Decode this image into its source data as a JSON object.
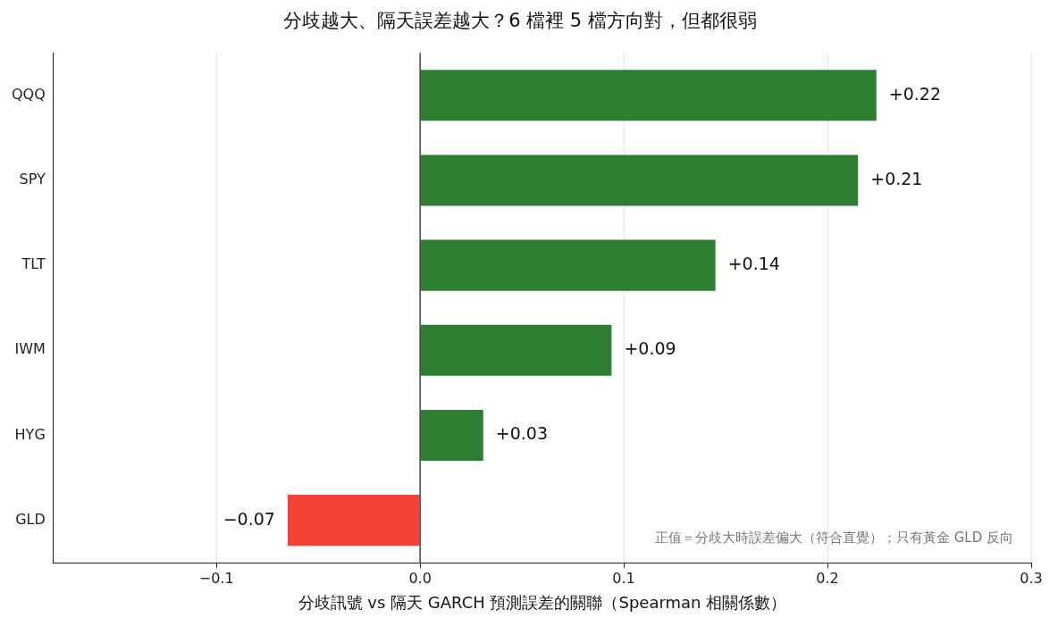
{
  "chart_data": {
    "type": "bar",
    "orientation": "horizontal",
    "title": "分歧越大、隔天誤差越大？6 檔裡 5 檔方向對，但都很弱",
    "xlabel": "分歧訊號 vs 隔天 GARCH 預測誤差的關聯（Spearman 相關係數）",
    "categories": [
      "QQQ",
      "SPY",
      "TLT",
      "IWM",
      "HYG",
      "GLD"
    ],
    "values": [
      0.224,
      0.215,
      0.145,
      0.094,
      0.031,
      -0.065
    ],
    "colors": [
      "#2e7d32",
      "#2e7d32",
      "#2e7d32",
      "#2e7d32",
      "#2e7d32",
      "#f44336"
    ],
    "value_labels": [
      "+0.22",
      "+0.21",
      "+0.14",
      "+0.09",
      "+0.03",
      "−0.07"
    ],
    "xlim": [
      -0.18,
      0.3
    ],
    "xticks": [
      {
        "value": -0.1,
        "label": "−0.1"
      },
      {
        "value": 0,
        "label": "0.0"
      },
      0.1,
      0.2,
      0.3
    ],
    "grid": "x",
    "legend": false,
    "ref_lines": [
      {
        "axis": "x",
        "value": 0,
        "color": "#444444"
      }
    ],
    "annotations": [
      "正值＝分歧大時誤差偏大（符合直覺）；只有黃金 GLD 反向"
    ]
  }
}
